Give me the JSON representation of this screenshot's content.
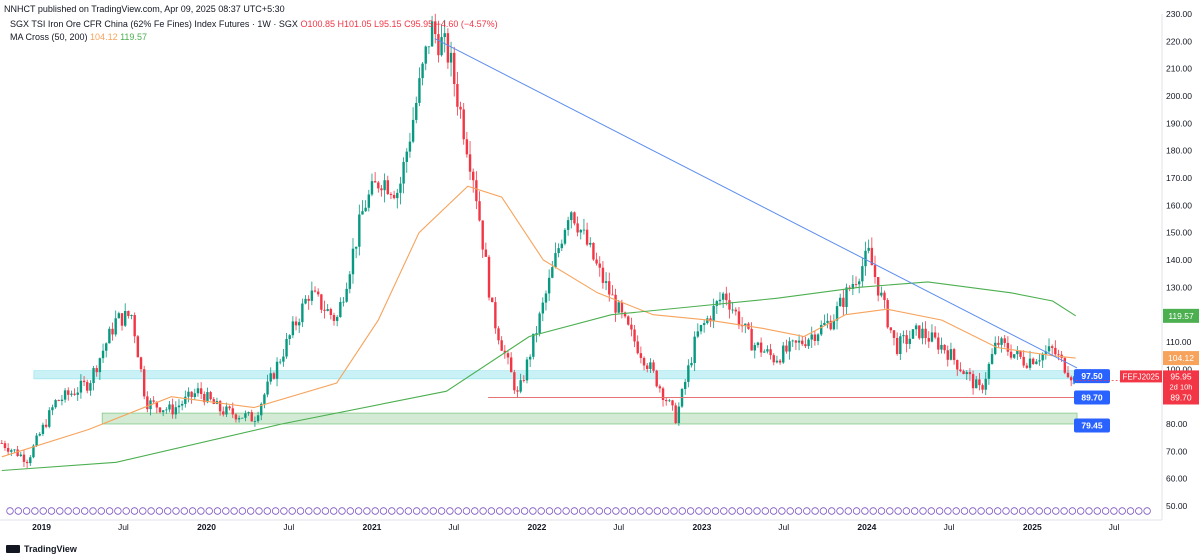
{
  "publisher_line": "NNHCT published on TradingView.com, Apr 09, 2025 08:37 UTC+5:30",
  "symbol": {
    "title": "SGX TSI Iron Ore CFR China (62% Fe Fines) Index Futures · 1W · SGX",
    "open": "O100.85",
    "high": "H101.05",
    "low": "L95.15",
    "close": "C95.95",
    "change": "−4.60 (−4.57%)"
  },
  "indicator": {
    "name": "MA Cross (50, 200)",
    "ma50_value": "104.12",
    "ma200_value": "119.57"
  },
  "footer": {
    "brand": "TradingView"
  },
  "colors": {
    "up": "#089981",
    "down": "#f23645",
    "ma50": "#f7a35c",
    "ma200": "#4caf50",
    "trendline": "#5b8def",
    "support_zone": "#b2ebf2",
    "lower_zone": "#c8e6c9",
    "support_line": "#e57373",
    "label_blue": "#2962ff"
  },
  "chart_data": {
    "type": "candlestick",
    "timeframe": "1W",
    "y_axis": {
      "min": 50,
      "max": 230,
      "ticks": [
        50,
        60,
        70,
        80,
        90,
        100,
        110,
        120,
        130,
        140,
        150,
        160,
        170,
        180,
        190,
        200,
        210,
        220,
        230
      ],
      "tick_labels": [
        "50.00",
        "60.00",
        "70.00",
        "80.00",
        "90.00",
        "100.00",
        "110.00",
        "120.00",
        "130.00",
        "140.00",
        "150.00",
        "160.00",
        "170.00",
        "180.00",
        "190.00",
        "200.00",
        "210.00",
        "220.00",
        "230.00"
      ]
    },
    "x_axis": {
      "ticks": [
        "2019",
        "Jul",
        "2020",
        "Jul",
        "2021",
        "Jul",
        "2022",
        "Jul",
        "2023",
        "Jul",
        "2024",
        "Jul",
        "2025",
        "Jul"
      ],
      "range": [
        "2018-10",
        "2025-10"
      ]
    },
    "price_path": [
      [
        "2018-10-05",
        73
      ],
      [
        "2018-12-01",
        67
      ],
      [
        "2019-02-01",
        88
      ],
      [
        "2019-04-15",
        95
      ],
      [
        "2019-06-15",
        118
      ],
      [
        "2019-07-20",
        120
      ],
      [
        "2019-08-20",
        88
      ],
      [
        "2019-10-15",
        85
      ],
      [
        "2019-12-15",
        92
      ],
      [
        "2020-02-01",
        85
      ],
      [
        "2020-04-15",
        82
      ],
      [
        "2020-06-01",
        100
      ],
      [
        "2020-08-15",
        128
      ],
      [
        "2020-10-15",
        118
      ],
      [
        "2020-12-15",
        160
      ],
      [
        "2021-01-20",
        170
      ],
      [
        "2021-03-01",
        165
      ],
      [
        "2021-05-12",
        225
      ],
      [
        "2021-06-20",
        215
      ],
      [
        "2021-08-15",
        170
      ],
      [
        "2021-09-25",
        120
      ],
      [
        "2021-11-20",
        90
      ],
      [
        "2022-01-01",
        115
      ],
      [
        "2022-03-15",
        160
      ],
      [
        "2022-05-20",
        135
      ],
      [
        "2022-07-20",
        115
      ],
      [
        "2022-09-10",
        100
      ],
      [
        "2022-11-05",
        82
      ],
      [
        "2022-12-20",
        112
      ],
      [
        "2023-02-20",
        128
      ],
      [
        "2023-04-20",
        110
      ],
      [
        "2023-06-10",
        104
      ],
      [
        "2023-08-10",
        110
      ],
      [
        "2023-10-15",
        118
      ],
      [
        "2024-01-05",
        142
      ],
      [
        "2024-03-05",
        108
      ],
      [
        "2024-04-25",
        114
      ],
      [
        "2024-06-20",
        108
      ],
      [
        "2024-09-08",
        92
      ],
      [
        "2024-10-15",
        110
      ],
      [
        "2024-12-15",
        103
      ],
      [
        "2025-02-15",
        107
      ],
      [
        "2025-04-07",
        95.95
      ]
    ],
    "ma50_path": [
      [
        "2018-10-05",
        68
      ],
      [
        "2019-04-15",
        78
      ],
      [
        "2019-10-15",
        90
      ],
      [
        "2020-04-15",
        86
      ],
      [
        "2020-10-15",
        95
      ],
      [
        "2021-01-15",
        118
      ],
      [
        "2021-04-15",
        150
      ],
      [
        "2021-08-01",
        167
      ],
      [
        "2021-10-15",
        163
      ],
      [
        "2022-01-15",
        140
      ],
      [
        "2022-05-15",
        128
      ],
      [
        "2022-09-15",
        120
      ],
      [
        "2023-01-15",
        118
      ],
      [
        "2023-05-15",
        115
      ],
      [
        "2023-08-15",
        112
      ],
      [
        "2023-11-15",
        120
      ],
      [
        "2024-02-15",
        122
      ],
      [
        "2024-06-15",
        118
      ],
      [
        "2024-10-15",
        108
      ],
      [
        "2025-02-15",
        105
      ],
      [
        "2025-04-07",
        104.12
      ]
    ],
    "ma200_path": [
      [
        "2018-10-05",
        63
      ],
      [
        "2019-06-15",
        66
      ],
      [
        "2020-06-15",
        80
      ],
      [
        "2021-06-15",
        92
      ],
      [
        "2021-12-15",
        112
      ],
      [
        "2022-06-15",
        120
      ],
      [
        "2022-12-15",
        123
      ],
      [
        "2023-06-15",
        126
      ],
      [
        "2023-12-15",
        130
      ],
      [
        "2024-05-15",
        132
      ],
      [
        "2024-11-15",
        128
      ],
      [
        "2025-02-15",
        125
      ],
      [
        "2025-04-07",
        119.57
      ]
    ],
    "annotations": {
      "trendline": {
        "from": [
          "2021-05-20",
          221
        ],
        "to": [
          "2025-04-10",
          100.5
        ],
        "label": "97.50",
        "label_y": 97.5
      },
      "support_zone": {
        "from": "2018-12-15",
        "to": "2025-04-10",
        "y_low": 96.5,
        "y_high": 99.5
      },
      "support_line": {
        "from": "2021-09-15",
        "to": "2025-04-10",
        "y": 89.7,
        "label": "89.70"
      },
      "lower_zone": {
        "from": "2019-05-15",
        "to": "2025-04-10",
        "y_low": 80.0,
        "y_high": 84.0,
        "label": "79.45",
        "label_y": 79.45
      }
    },
    "axis_labels": {
      "ma50": {
        "value": 104.12,
        "text": "104.12"
      },
      "ma200": {
        "value": 119.57,
        "text": "119.57"
      },
      "price": {
        "value": 95.95,
        "symbol": "FEFJ2025",
        "text": "95.95",
        "countdown": "2d 10h"
      },
      "support": {
        "value": 89.7,
        "text": "89.70"
      }
    }
  }
}
